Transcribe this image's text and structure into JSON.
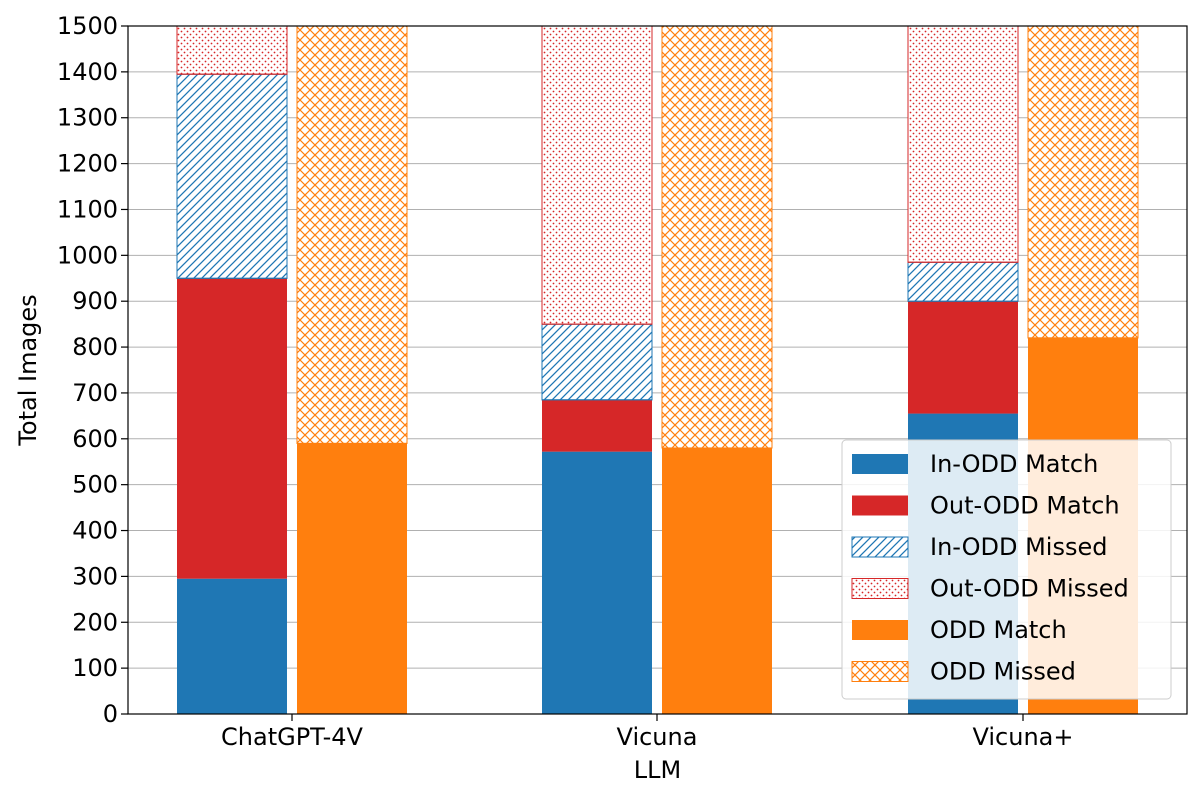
{
  "chart_data": {
    "type": "bar",
    "categories": [
      "ChatGPT-4V",
      "Vicuna",
      "Vicuna+"
    ],
    "xlabel": "LLM",
    "ylabel": "Total Images",
    "ylim": [
      0,
      1500
    ],
    "yticks": [
      0,
      100,
      200,
      300,
      400,
      500,
      600,
      700,
      800,
      900,
      1000,
      1100,
      1200,
      1300,
      1400,
      1500
    ],
    "grid": "horizontal",
    "legend_position": "bottom-right",
    "colors": {
      "blue": "#1f77b4",
      "red": "#d62728",
      "orange": "#ff7f0e"
    },
    "stacks": [
      {
        "position": "left",
        "segments": [
          {
            "name": "In-ODD Match",
            "color": "#1f77b4",
            "style": "solid",
            "values": [
              295,
              572,
              655
            ]
          },
          {
            "name": "Out-ODD Match",
            "color": "#d62728",
            "style": "solid",
            "values": [
              655,
              113,
              245
            ]
          },
          {
            "name": "In-ODD Missed",
            "color": "#1f77b4",
            "style": "diagonal-hatch",
            "values": [
              445,
              165,
              85
            ]
          },
          {
            "name": "Out-ODD Missed",
            "color": "#d62728",
            "style": "dot-hatch",
            "values": [
              105,
              650,
              515
            ]
          }
        ]
      },
      {
        "position": "right",
        "segments": [
          {
            "name": "ODD Match",
            "color": "#ff7f0e",
            "style": "solid",
            "values": [
              590,
              580,
              820
            ]
          },
          {
            "name": "ODD Missed",
            "color": "#ff7f0e",
            "style": "cross-hatch",
            "values": [
              910,
              920,
              680
            ]
          }
        ]
      }
    ],
    "legend": [
      {
        "label": "In-ODD Match",
        "color": "#1f77b4",
        "style": "solid"
      },
      {
        "label": "Out-ODD Match",
        "color": "#d62728",
        "style": "solid"
      },
      {
        "label": "In-ODD Missed",
        "color": "#1f77b4",
        "style": "diagonal-hatch"
      },
      {
        "label": "Out-ODD Missed",
        "color": "#d62728",
        "style": "dot-hatch"
      },
      {
        "label": "ODD Match",
        "color": "#ff7f0e",
        "style": "solid"
      },
      {
        "label": "ODD Missed",
        "color": "#ff7f0e",
        "style": "cross-hatch"
      }
    ]
  }
}
